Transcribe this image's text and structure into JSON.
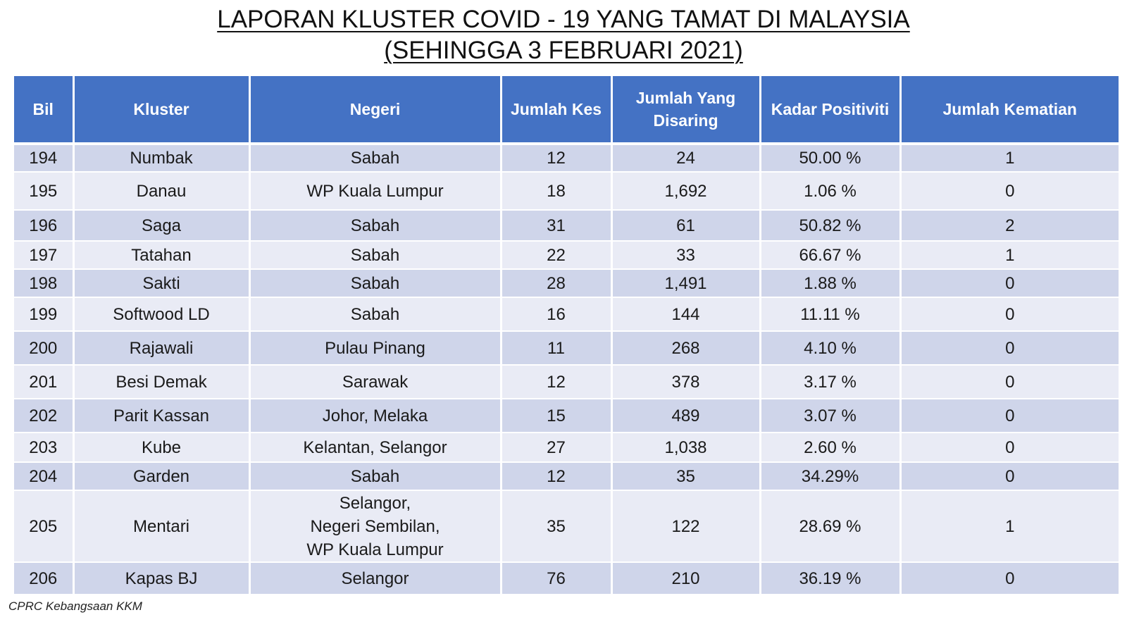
{
  "title": {
    "line1": "LAPORAN KLUSTER COVID - 19 YANG TAMAT DI MALAYSIA",
    "line2": "(SEHINGGA 3 FEBRUARI 2021)"
  },
  "table": {
    "headers": {
      "bil": "Bil",
      "kluster": "Kluster",
      "negeri": "Negeri",
      "jumlah_kes": "Jumlah Kes",
      "jumlah_disaring_1": "Jumlah Yang",
      "jumlah_disaring_2": "Disaring",
      "kadar_positiviti": "Kadar Positiviti",
      "jumlah_kematian": "Jumlah Kematian"
    },
    "rows": [
      {
        "bil": "194",
        "kluster": "Numbak",
        "negeri": [
          "Sabah"
        ],
        "kes": "12",
        "disaring": "24",
        "positiviti": "50.00 %",
        "kematian": "1"
      },
      {
        "bil": "195",
        "kluster": "Danau",
        "negeri": [
          "WP Kuala Lumpur"
        ],
        "kes": "18",
        "disaring": "1,692",
        "positiviti": "1.06 %",
        "kematian": "0"
      },
      {
        "bil": "196",
        "kluster": "Saga",
        "negeri": [
          "Sabah"
        ],
        "kes": "31",
        "disaring": "61",
        "positiviti": "50.82 %",
        "kematian": "2"
      },
      {
        "bil": "197",
        "kluster": "Tatahan",
        "negeri": [
          "Sabah"
        ],
        "kes": "22",
        "disaring": "33",
        "positiviti": "66.67 %",
        "kematian": "1"
      },
      {
        "bil": "198",
        "kluster": "Sakti",
        "negeri": [
          "Sabah"
        ],
        "kes": "28",
        "disaring": "1,491",
        "positiviti": "1.88 %",
        "kematian": "0"
      },
      {
        "bil": "199",
        "kluster": "Softwood LD",
        "negeri": [
          "Sabah"
        ],
        "kes": "16",
        "disaring": "144",
        "positiviti": "11.11 %",
        "kematian": "0"
      },
      {
        "bil": "200",
        "kluster": "Rajawali",
        "negeri": [
          "Pulau Pinang"
        ],
        "kes": "11",
        "disaring": "268",
        "positiviti": "4.10 %",
        "kematian": "0"
      },
      {
        "bil": "201",
        "kluster": "Besi Demak",
        "negeri": [
          "Sarawak"
        ],
        "kes": "12",
        "disaring": "378",
        "positiviti": "3.17 %",
        "kematian": "0"
      },
      {
        "bil": "202",
        "kluster": "Parit Kassan",
        "negeri": [
          "Johor, Melaka"
        ],
        "kes": "15",
        "disaring": "489",
        "positiviti": "3.07 %",
        "kematian": "0"
      },
      {
        "bil": "203",
        "kluster": "Kube",
        "negeri": [
          "Kelantan, Selangor"
        ],
        "kes": "27",
        "disaring": "1,038",
        "positiviti": "2.60 %",
        "kematian": "0"
      },
      {
        "bil": "204",
        "kluster": "Garden",
        "negeri": [
          "Sabah"
        ],
        "kes": "12",
        "disaring": "35",
        "positiviti": "34.29%",
        "kematian": "0"
      },
      {
        "bil": "205",
        "kluster": "Mentari",
        "negeri": [
          "Selangor,",
          "Negeri Sembilan,",
          "WP Kuala Lumpur"
        ],
        "kes": "35",
        "disaring": "122",
        "positiviti": "28.69 %",
        "kematian": "1"
      },
      {
        "bil": "206",
        "kluster": "Kapas BJ",
        "negeri": [
          "Selangor"
        ],
        "kes": "76",
        "disaring": "210",
        "positiviti": "36.19 %",
        "kematian": "0"
      }
    ]
  },
  "footer": {
    "source": "CPRC Kebangsaan KKM"
  },
  "colors": {
    "header_bg": "#4472c4",
    "row_odd": "#cfd5ea",
    "row_even": "#e9ebf5"
  }
}
